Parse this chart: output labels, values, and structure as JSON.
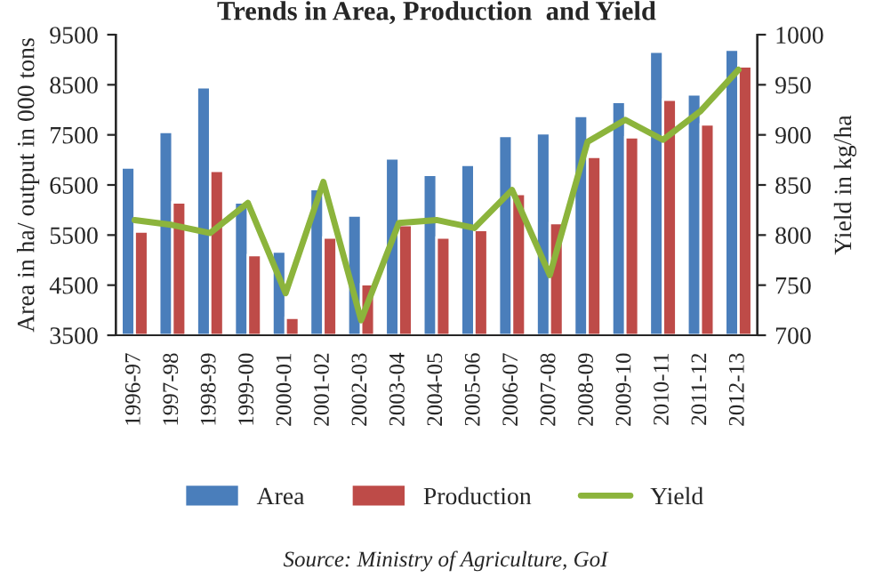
{
  "chart_data": {
    "type": "bar",
    "title": "Trends in Area, Production  and Yield",
    "ylabel": "Area in ha/ output in 000 tons",
    "y2label": "Yield in kg/ha",
    "categories": [
      "1996-97",
      "1997-98",
      "1998-99",
      "1999-00",
      "2000-01",
      "2001-02",
      "2002-03",
      "2003-04",
      "2004-05",
      "2005-06",
      "2006-07",
      "2007-08",
      "2008-09",
      "2009-10",
      "2010-11",
      "2011-12",
      "2012-13"
    ],
    "series": [
      {
        "name": "Area",
        "color": "#4a7ebb",
        "values": [
          6850,
          7560,
          8450,
          6150,
          5170,
          6420,
          5890,
          7030,
          6700,
          6900,
          7480,
          7530,
          7880,
          8160,
          9160,
          8310,
          9200
        ]
      },
      {
        "name": "Production",
        "color": "#be4b48",
        "values": [
          5570,
          6150,
          6780,
          5100,
          3850,
          5450,
          4520,
          5700,
          5450,
          5600,
          6320,
          5740,
          7060,
          7450,
          8200,
          7710,
          8870
        ]
      },
      {
        "name": "Yield",
        "type": "line",
        "axis": "y2",
        "color": "#8cb43c",
        "values": [
          815,
          810,
          802,
          832,
          742,
          853,
          715,
          812,
          815,
          807,
          845,
          760,
          893,
          915,
          895,
          924,
          965
        ]
      }
    ],
    "ylim": [
      3500,
      9500
    ],
    "yticks": [
      3500,
      4500,
      5500,
      6500,
      7500,
      8500,
      9500
    ],
    "y2lim": [
      700,
      1000
    ],
    "y2ticks": [
      700,
      750,
      800,
      850,
      900,
      950,
      1000
    ],
    "grid": false,
    "legend": "bottom",
    "annotations": [
      "Source: Ministry of Agriculture, GoI"
    ]
  }
}
